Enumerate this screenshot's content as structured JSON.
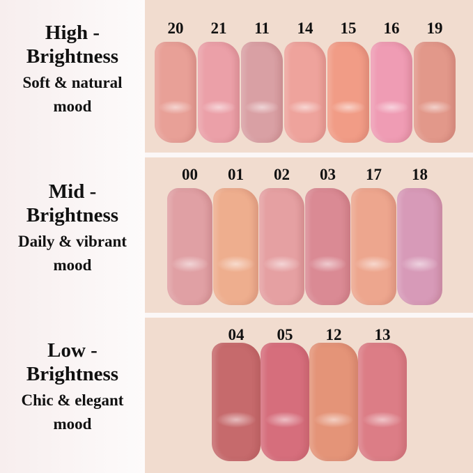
{
  "groups": [
    {
      "title": "High -\nBrightness",
      "title1": "High -",
      "title2": "Brightness",
      "mood1": "Soft & natural",
      "mood2": "mood",
      "shades": [
        {
          "code": "20",
          "color": "#e8a097"
        },
        {
          "code": "21",
          "color": "#eba0a8"
        },
        {
          "code": "11",
          "color": "#d9a0a4"
        },
        {
          "code": "14",
          "color": "#eea39c"
        },
        {
          "code": "15",
          "color": "#f19c86"
        },
        {
          "code": "16",
          "color": "#ef9cb4"
        },
        {
          "code": "19",
          "color": "#e2988a"
        }
      ]
    },
    {
      "title1": "Mid -",
      "title2": "Brightness",
      "mood1": "Daily & vibrant",
      "mood2": "mood",
      "shades": [
        {
          "code": "00",
          "color": "#e0a0a4"
        },
        {
          "code": "01",
          "color": "#eeae8e"
        },
        {
          "code": "02",
          "color": "#e5a0a2"
        },
        {
          "code": "03",
          "color": "#da8a94"
        },
        {
          "code": "17",
          "color": "#eda68e"
        },
        {
          "code": "18",
          "color": "#d79ab8"
        }
      ]
    },
    {
      "title1": "Low -",
      "title2": "Brightness",
      "mood1": "Chic & elegant",
      "mood2": "mood",
      "shades": [
        {
          "code": "04",
          "color": "#c66a6c"
        },
        {
          "code": "05",
          "color": "#d66e7c"
        },
        {
          "code": "12",
          "color": "#e49478"
        },
        {
          "code": "13",
          "color": "#dc7d86"
        }
      ]
    }
  ],
  "background_color": "#f1dccf"
}
